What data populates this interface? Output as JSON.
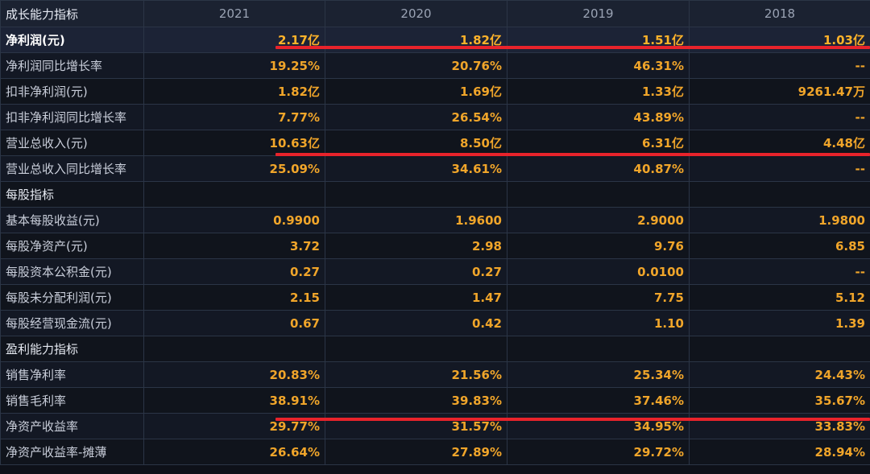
{
  "header": {
    "corner_label": "成长能力指标",
    "years": [
      "2021",
      "2020",
      "2019",
      "2018"
    ]
  },
  "rows": [
    {
      "label": "净利润(元)",
      "values": [
        "2.17亿",
        "1.82亿",
        "1.51亿",
        "1.03亿"
      ],
      "highlight": true
    },
    {
      "label": "净利润同比增长率",
      "values": [
        "19.25%",
        "20.76%",
        "46.31%",
        "--"
      ]
    },
    {
      "label": "扣非净利润(元)",
      "values": [
        "1.82亿",
        "1.69亿",
        "1.33亿",
        "9261.47万"
      ]
    },
    {
      "label": "扣非净利润同比增长率",
      "values": [
        "7.77%",
        "26.54%",
        "43.89%",
        "--"
      ]
    },
    {
      "label": "营业总收入(元)",
      "values": [
        "10.63亿",
        "8.50亿",
        "6.31亿",
        "4.48亿"
      ]
    },
    {
      "label": "营业总收入同比增长率",
      "values": [
        "25.09%",
        "34.61%",
        "40.87%",
        "--"
      ]
    },
    {
      "label": "每股指标",
      "values": [
        "",
        "",
        "",
        ""
      ],
      "section": true
    },
    {
      "label": "基本每股收益(元)",
      "values": [
        "0.9900",
        "1.9600",
        "2.9000",
        "1.9800"
      ]
    },
    {
      "label": "每股净资产(元)",
      "values": [
        "3.72",
        "2.98",
        "9.76",
        "6.85"
      ]
    },
    {
      "label": "每股资本公积金(元)",
      "values": [
        "0.27",
        "0.27",
        "0.0100",
        "--"
      ]
    },
    {
      "label": "每股未分配利润(元)",
      "values": [
        "2.15",
        "1.47",
        "7.75",
        "5.12"
      ]
    },
    {
      "label": "每股经营现金流(元)",
      "values": [
        "0.67",
        "0.42",
        "1.10",
        "1.39"
      ]
    },
    {
      "label": "盈利能力指标",
      "values": [
        "",
        "",
        "",
        ""
      ],
      "section": true
    },
    {
      "label": "销售净利率",
      "values": [
        "20.83%",
        "21.56%",
        "25.34%",
        "24.43%"
      ]
    },
    {
      "label": "销售毛利率",
      "values": [
        "38.91%",
        "39.83%",
        "37.46%",
        "35.67%"
      ]
    },
    {
      "label": "净资产收益率",
      "values": [
        "29.77%",
        "31.57%",
        "34.95%",
        "33.83%"
      ]
    },
    {
      "label": "净资产收益率-摊薄",
      "values": [
        "26.64%",
        "27.89%",
        "29.72%",
        "28.94%"
      ]
    }
  ],
  "colors": {
    "value": "#f0a52a",
    "underline_mark": "#e8232b",
    "background": "#0e1119"
  }
}
